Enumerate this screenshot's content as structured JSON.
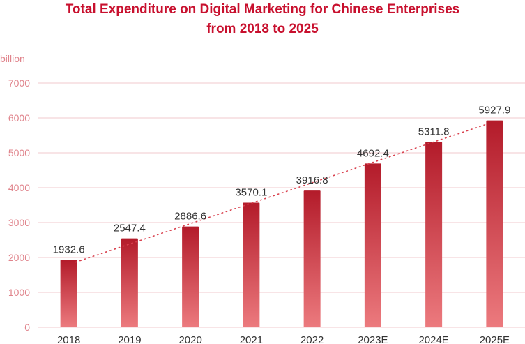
{
  "chart_data": {
    "type": "bar",
    "title_line1": "Total Expenditure on Digital Marketing for Chinese Enterprises",
    "title_line2": "from 2018 to 2025",
    "ylabel": "billion",
    "xlabel": "",
    "categories": [
      "2018",
      "2019",
      "2020",
      "2021",
      "2022",
      "2023E",
      "2024E",
      "2025E"
    ],
    "values": [
      1932.6,
      2547.4,
      2886.6,
      3570.1,
      3916.8,
      4692.4,
      5311.8,
      5927.9
    ],
    "value_labels": [
      "1932.6",
      "2547.4",
      "2886.6",
      "3570.1",
      "3916.8",
      "4692.4",
      "5311.8",
      "5927.9"
    ],
    "ylim": [
      0,
      7000
    ],
    "yticks": [
      0,
      1000,
      2000,
      3000,
      4000,
      5000,
      6000,
      7000
    ],
    "grid": true,
    "trendline": "linear dotted",
    "colors": {
      "title": "#c8102e",
      "bar_top": "#b31b2a",
      "bar_bottom": "#ec7a7e",
      "axis_text": "#e0848c",
      "grid": "#f2c9cd",
      "value_label": "#333333",
      "trend": "#d9414e"
    }
  }
}
